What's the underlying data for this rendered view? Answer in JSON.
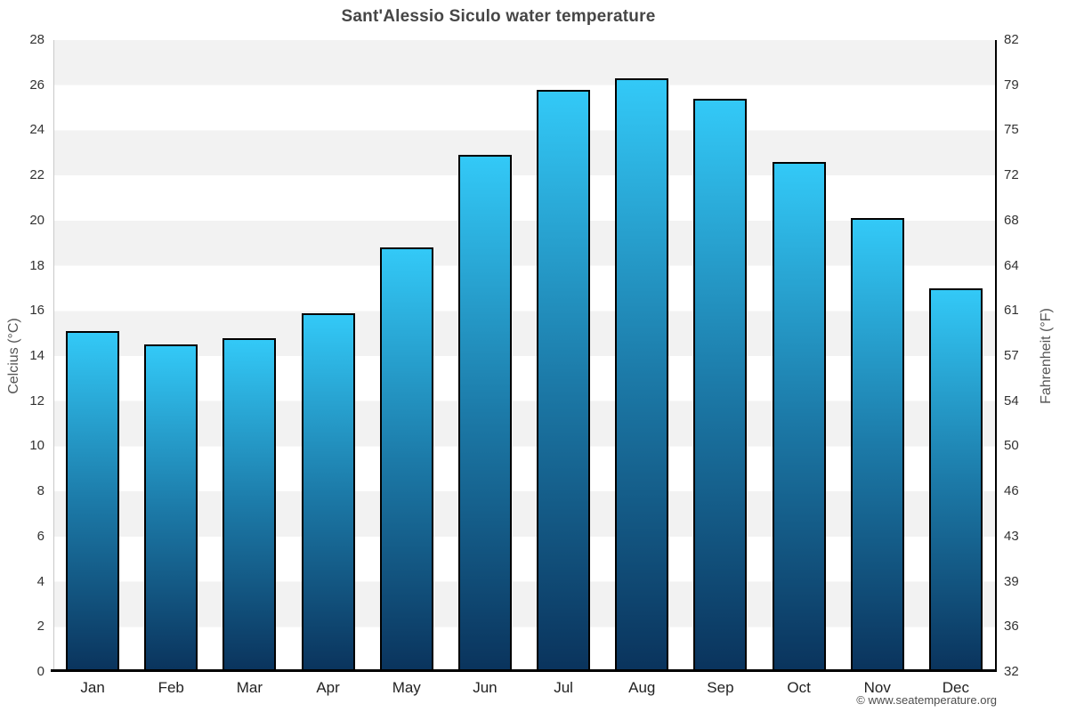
{
  "chart_data": {
    "type": "bar",
    "title": "Sant'Alessio Siculo water temperature",
    "ylabel_left": "Celcius (°C)",
    "ylabel_right": "Fahrenheit (°F)",
    "categories": [
      "Jan",
      "Feb",
      "Mar",
      "Apr",
      "May",
      "Jun",
      "Jul",
      "Aug",
      "Sep",
      "Oct",
      "Nov",
      "Dec"
    ],
    "values": [
      15.1,
      14.5,
      14.8,
      15.9,
      18.8,
      22.9,
      25.8,
      26.3,
      25.4,
      22.6,
      20.1,
      17.0
    ],
    "ylim": [
      0,
      28
    ],
    "celsius_ticks": [
      0,
      2,
      4,
      6,
      8,
      10,
      12,
      14,
      16,
      18,
      20,
      22,
      24,
      26,
      28
    ],
    "fahrenheit_ticks": [
      32,
      36,
      39,
      43,
      46,
      50,
      54,
      57,
      61,
      64,
      68,
      72,
      75,
      79,
      82
    ],
    "grid": "alternating horizontal bands every 2°C",
    "legend": "none",
    "colors": {
      "bar_top": "#33C9F7",
      "bar_mid": "#1C7AA8",
      "bar_bottom": "#0A335C",
      "bar_border": "#000000",
      "band": "#F2F2F2",
      "title_text": "#464646"
    }
  },
  "footer": {
    "watermark": "© www.seatemperature.org"
  }
}
